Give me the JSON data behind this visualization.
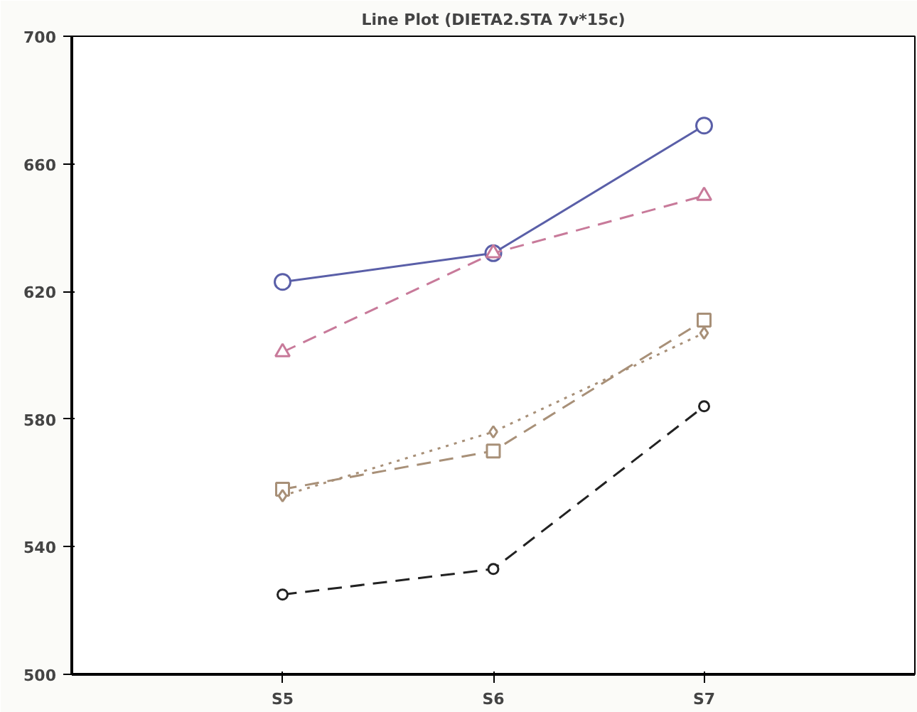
{
  "chart_data": {
    "type": "line",
    "title": "Line Plot (DIETA2.STA 7v*15c)",
    "categories": [
      "S5",
      "S6",
      "S7"
    ],
    "series": [
      {
        "color": "#5a5fa8",
        "values": [
          623,
          632,
          672
        ],
        "marker": "circle",
        "line_style": "solid"
      },
      {
        "color": "#c87a9a",
        "values": [
          601,
          632,
          650
        ],
        "marker": "triangle",
        "line_style": "dashed"
      },
      {
        "color": "#a89078",
        "values": [
          558,
          570,
          611
        ],
        "marker": "square",
        "line_style": "dashed"
      },
      {
        "color": "#a89078",
        "values": [
          556,
          576,
          607
        ],
        "marker": "diamond",
        "line_style": "dotted"
      },
      {
        "color": "#222222",
        "values": [
          525,
          533,
          584
        ],
        "marker": "circle",
        "line_style": "dashed"
      }
    ],
    "ylim": [
      500,
      700
    ],
    "yticks": [
      500,
      540,
      580,
      620,
      660,
      700
    ],
    "grid": false
  }
}
